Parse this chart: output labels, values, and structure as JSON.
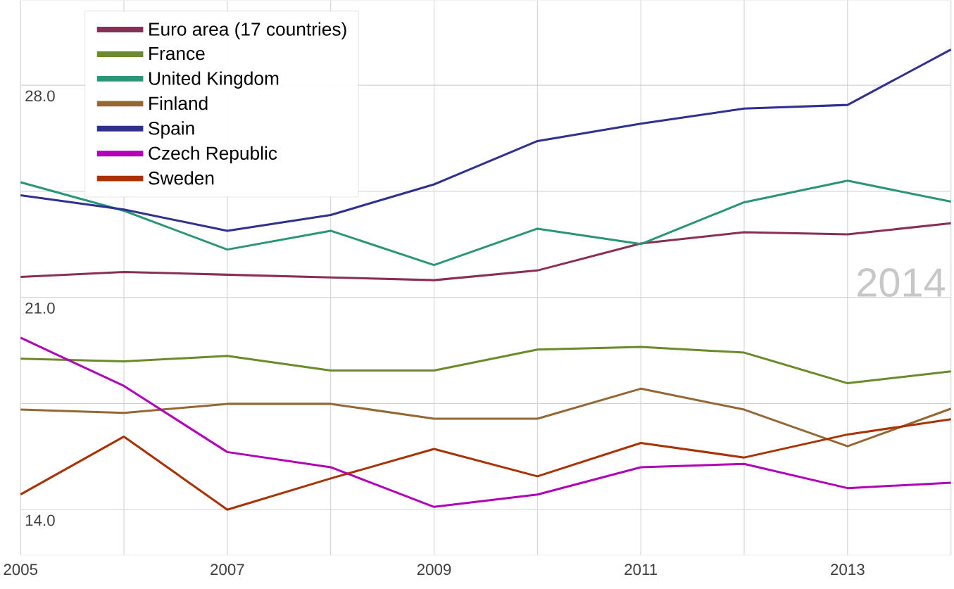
{
  "chart_data": {
    "type": "line",
    "x": [
      2005,
      2006,
      2007,
      2008,
      2009,
      2010,
      2011,
      2012,
      2013,
      2014
    ],
    "series": [
      {
        "name": "Euro area (17 countries)",
        "color": "#8b2e55",
        "values": [
          21.68,
          21.84,
          21.75,
          21.66,
          21.57,
          21.89,
          22.78,
          23.15,
          23.08,
          23.45
        ]
      },
      {
        "name": "France",
        "color": "#6b8a2a",
        "values": [
          18.98,
          18.89,
          19.07,
          18.59,
          18.59,
          19.28,
          19.37,
          19.18,
          18.17,
          18.56
        ]
      },
      {
        "name": "United Kingdom",
        "color": "#2a9577",
        "values": [
          24.8,
          23.86,
          22.58,
          23.2,
          22.07,
          23.27,
          22.76,
          24.14,
          24.85,
          24.16
        ]
      },
      {
        "name": "Finland",
        "color": "#946834",
        "values": [
          17.3,
          17.19,
          17.49,
          17.49,
          17.0,
          17.0,
          17.99,
          17.3,
          16.09,
          17.33
        ]
      },
      {
        "name": "Spain",
        "color": "#303090",
        "values": [
          24.37,
          23.9,
          23.2,
          23.72,
          24.73,
          26.16,
          26.73,
          27.23,
          27.35,
          29.18
        ]
      },
      {
        "name": "Czech Republic",
        "color": "#b000b8",
        "values": [
          19.67,
          18.08,
          15.9,
          15.4,
          14.09,
          14.5,
          15.4,
          15.51,
          14.71,
          14.89
        ]
      },
      {
        "name": "Sweden",
        "color": "#a83200",
        "values": [
          14.5,
          16.41,
          14.0,
          15.03,
          16.0,
          15.1,
          16.2,
          15.72,
          16.48,
          16.98
        ]
      }
    ],
    "xlim": [
      2005,
      2014
    ],
    "xticks": [
      2005,
      {
        "value": 2006,
        "label": null
      },
      2007,
      {
        "value": 2008,
        "label": null
      },
      2009,
      {
        "value": 2010,
        "label": null
      },
      2011,
      {
        "value": 2012,
        "label": null
      },
      2013,
      {
        "value": 2014,
        "label": null
      }
    ],
    "ylim": [
      12.5,
      30.8
    ],
    "yticks": [
      {
        "value": 14,
        "label": "14.0"
      },
      {
        "value": 17.5,
        "label": null
      },
      {
        "value": 21,
        "label": "21.0"
      },
      {
        "value": 24.5,
        "label": null
      },
      {
        "value": 28,
        "label": "28.0"
      }
    ],
    "annotations": [
      "2014"
    ],
    "grid": true,
    "legend": "top left",
    "marker": "none",
    "line_style": "solid"
  }
}
